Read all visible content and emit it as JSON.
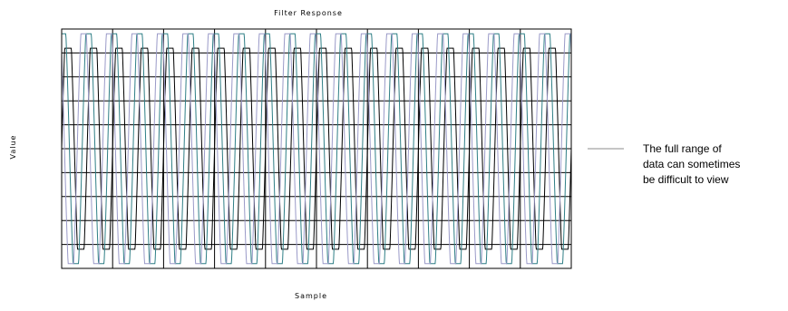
{
  "chart_data": {
    "type": "line",
    "title": "Filter Response",
    "xlabel": "Sample",
    "ylabel": "Value",
    "grid": true,
    "legend_position": "right",
    "legend": {
      "lines": [
        "The full range of",
        "data can sometimes",
        "be difficult to view"
      ],
      "color": "#b4b4b4"
    },
    "x_divisions": 10,
    "y_divisions": 10,
    "series": [
      {
        "color": "#000000",
        "cycles_per_division": 2,
        "phase_deg": 0,
        "clip": [
          0.08,
          0.92
        ]
      },
      {
        "color": "#2f7f86",
        "cycles_per_division": 2,
        "phase_deg": 70,
        "clip": [
          0.02,
          0.98
        ]
      },
      {
        "color": "#9a9ac8",
        "cycles_per_division": 2,
        "phase_deg": 140,
        "clip": [
          0.02,
          0.98
        ]
      }
    ]
  }
}
